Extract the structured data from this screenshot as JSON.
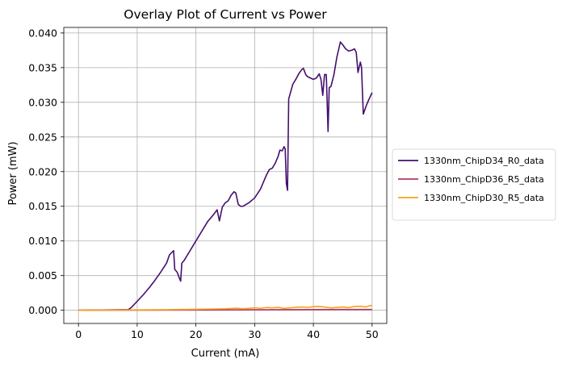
{
  "chart_data": {
    "type": "line",
    "title": "Overlay Plot of Current vs Power",
    "xlabel": "Current (mA)",
    "ylabel": "Power (mW)",
    "xlim": [
      -2.5,
      52.5
    ],
    "ylim": [
      -0.0019,
      0.0408
    ],
    "xticks": [
      0,
      10,
      20,
      30,
      40,
      50
    ],
    "yticks": [
      0.0,
      0.005,
      0.01,
      0.015,
      0.02,
      0.025,
      0.03,
      0.035,
      0.04
    ],
    "xtick_labels": [
      "0",
      "10",
      "20",
      "30",
      "40",
      "50"
    ],
    "ytick_labels": [
      "0.000",
      "0.005",
      "0.010",
      "0.015",
      "0.020",
      "0.025",
      "0.030",
      "0.035",
      "0.040"
    ],
    "grid": true,
    "legend_position": "center-right outside",
    "series": [
      {
        "name": "1330nm_ChipD34_R0_data",
        "color": "#440f6e",
        "points": [
          [
            0,
            0
          ],
          [
            8.5,
            0.0001
          ],
          [
            9,
            0.0004
          ],
          [
            10,
            0.0013
          ],
          [
            11,
            0.0022
          ],
          [
            12,
            0.0032
          ],
          [
            13,
            0.0043
          ],
          [
            14,
            0.0055
          ],
          [
            15,
            0.0068
          ],
          [
            15.5,
            0.008
          ],
          [
            16.2,
            0.0086
          ],
          [
            16.4,
            0.0059
          ],
          [
            16.8,
            0.0055
          ],
          [
            17.2,
            0.0046
          ],
          [
            17.4,
            0.0042
          ],
          [
            17.6,
            0.0068
          ],
          [
            18,
            0.0072
          ],
          [
            19,
            0.0086
          ],
          [
            20,
            0.01
          ],
          [
            21,
            0.0114
          ],
          [
            22,
            0.0128
          ],
          [
            23,
            0.0138
          ],
          [
            23.6,
            0.0145
          ],
          [
            24,
            0.0129
          ],
          [
            24.5,
            0.0149
          ],
          [
            25,
            0.0155
          ],
          [
            25.5,
            0.0158
          ],
          [
            26,
            0.0166
          ],
          [
            26.5,
            0.0171
          ],
          [
            26.8,
            0.0169
          ],
          [
            27.2,
            0.0153
          ],
          [
            27.6,
            0.015
          ],
          [
            28,
            0.015
          ],
          [
            29,
            0.0155
          ],
          [
            30,
            0.0162
          ],
          [
            31,
            0.0175
          ],
          [
            32,
            0.0195
          ],
          [
            32.5,
            0.0203
          ],
          [
            33,
            0.0205
          ],
          [
            33.5,
            0.0212
          ],
          [
            34,
            0.0222
          ],
          [
            34.3,
            0.0231
          ],
          [
            34.7,
            0.023
          ],
          [
            35,
            0.0236
          ],
          [
            35.2,
            0.0233
          ],
          [
            35.4,
            0.0183
          ],
          [
            35.6,
            0.0173
          ],
          [
            35.8,
            0.0305
          ],
          [
            36.5,
            0.0326
          ],
          [
            37,
            0.0333
          ],
          [
            37.5,
            0.0341
          ],
          [
            38,
            0.0347
          ],
          [
            38.3,
            0.0349
          ],
          [
            38.7,
            0.034
          ],
          [
            39,
            0.0337
          ],
          [
            39.5,
            0.0335
          ],
          [
            40,
            0.0333
          ],
          [
            40.5,
            0.0335
          ],
          [
            41,
            0.0341
          ],
          [
            41.3,
            0.0333
          ],
          [
            41.6,
            0.031
          ],
          [
            41.9,
            0.034
          ],
          [
            42.2,
            0.034
          ],
          [
            42.5,
            0.0258
          ],
          [
            42.7,
            0.0321
          ],
          [
            43,
            0.0323
          ],
          [
            43.5,
            0.034
          ],
          [
            44,
            0.0365
          ],
          [
            44.6,
            0.0387
          ],
          [
            45,
            0.0383
          ],
          [
            45.5,
            0.0377
          ],
          [
            46,
            0.0374
          ],
          [
            46.5,
            0.0375
          ],
          [
            47,
            0.0377
          ],
          [
            47.3,
            0.0372
          ],
          [
            47.6,
            0.0343
          ],
          [
            48,
            0.0358
          ],
          [
            48.2,
            0.035
          ],
          [
            48.5,
            0.0283
          ],
          [
            49,
            0.0295
          ],
          [
            49.5,
            0.0305
          ],
          [
            50,
            0.0314
          ]
        ]
      },
      {
        "name": "1330nm_ChipD36_R5_data",
        "color": "#b5376a",
        "points": [
          [
            0,
            0
          ],
          [
            10,
            2e-05
          ],
          [
            20,
            4e-05
          ],
          [
            30,
            7e-05
          ],
          [
            40,
            0.0001
          ],
          [
            45,
            0.00011
          ],
          [
            50,
            0.00012
          ]
        ]
      },
      {
        "name": "1330nm_ChipD30_R5_data",
        "color": "#f9a21c",
        "points": [
          [
            0,
            0
          ],
          [
            5,
            3e-05
          ],
          [
            10,
            6e-05
          ],
          [
            15,
            9e-05
          ],
          [
            20,
            0.00014
          ],
          [
            25,
            0.00022
          ],
          [
            27,
            0.0003
          ],
          [
            28,
            0.00022
          ],
          [
            30,
            0.00035
          ],
          [
            31,
            0.00028
          ],
          [
            32,
            0.0004
          ],
          [
            33,
            0.00035
          ],
          [
            34,
            0.00042
          ],
          [
            35,
            0.00027
          ],
          [
            36,
            0.00035
          ],
          [
            37,
            0.00042
          ],
          [
            38,
            0.00048
          ],
          [
            39,
            0.0004
          ],
          [
            40,
            0.00052
          ],
          [
            41,
            0.00055
          ],
          [
            42,
            0.00045
          ],
          [
            43,
            0.00035
          ],
          [
            44,
            0.0004
          ],
          [
            45,
            0.00048
          ],
          [
            46,
            0.00038
          ],
          [
            47,
            0.00055
          ],
          [
            48,
            0.00058
          ],
          [
            49,
            0.00048
          ],
          [
            49.5,
            0.00065
          ],
          [
            50,
            0.00068
          ]
        ]
      }
    ]
  }
}
